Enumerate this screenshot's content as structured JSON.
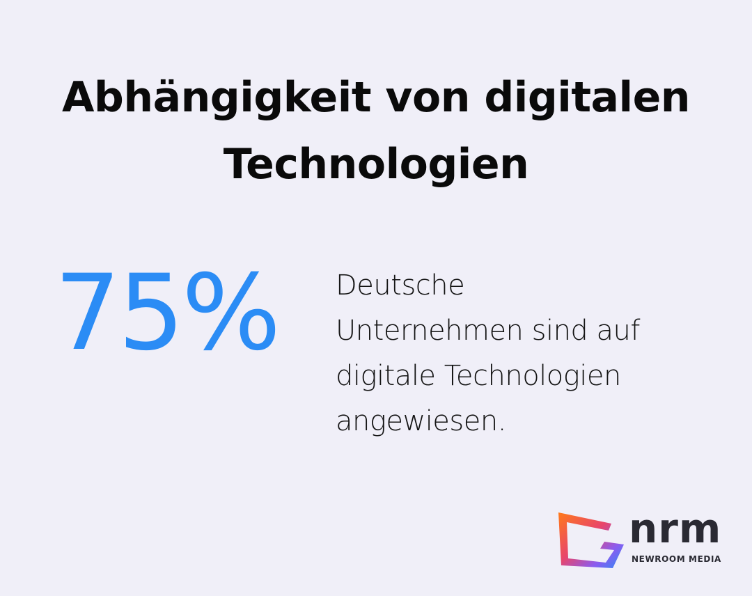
{
  "header": {
    "title_lines": [
      "Abhängigkeit von digitalen",
      "Technologien"
    ]
  },
  "stat": {
    "value": "75%",
    "description_lines": [
      "Deutsche",
      "Unternehmen sind auf",
      "digitale Technologien",
      "angewiesen."
    ]
  },
  "logo": {
    "wordmark": "nrm",
    "tagline": "NEWROOM MEDIA"
  }
}
